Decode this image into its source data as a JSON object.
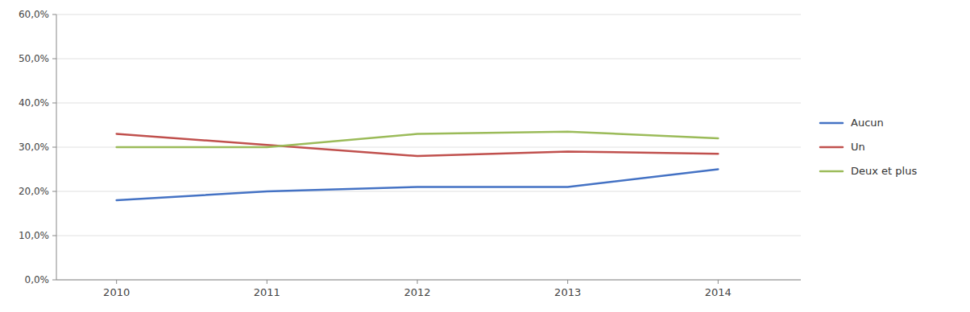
{
  "chart_data": {
    "type": "line",
    "x": [
      2010,
      2011,
      2012,
      2013,
      2014
    ],
    "series": [
      {
        "name": "Aucun",
        "color": "#4472C4",
        "values": [
          18.0,
          20.0,
          21.0,
          21.0,
          25.0
        ]
      },
      {
        "name": "Un",
        "color": "#C0504D",
        "values": [
          33.0,
          30.5,
          28.0,
          29.0,
          28.5
        ]
      },
      {
        "name": "Deux et plus",
        "color": "#9BBB59",
        "values": [
          30.0,
          30.0,
          33.0,
          33.5,
          32.0
        ]
      }
    ],
    "xlim": [
      2009.6,
      2014.55
    ],
    "xticks": [
      2010,
      2011,
      2012,
      2013,
      2014
    ],
    "ylim": [
      0,
      60
    ],
    "yticks": [
      {
        "value": 0,
        "label": "0,0%"
      },
      {
        "value": 10,
        "label": "10,0%"
      },
      {
        "value": 20,
        "label": "20,0%"
      },
      {
        "value": 30,
        "label": "30,0%"
      },
      {
        "value": 40,
        "label": "40,0%"
      },
      {
        "value": 50,
        "label": "50,0%"
      },
      {
        "value": 60,
        "label": "60,0%"
      }
    ],
    "grid": true,
    "legend": "right"
  }
}
